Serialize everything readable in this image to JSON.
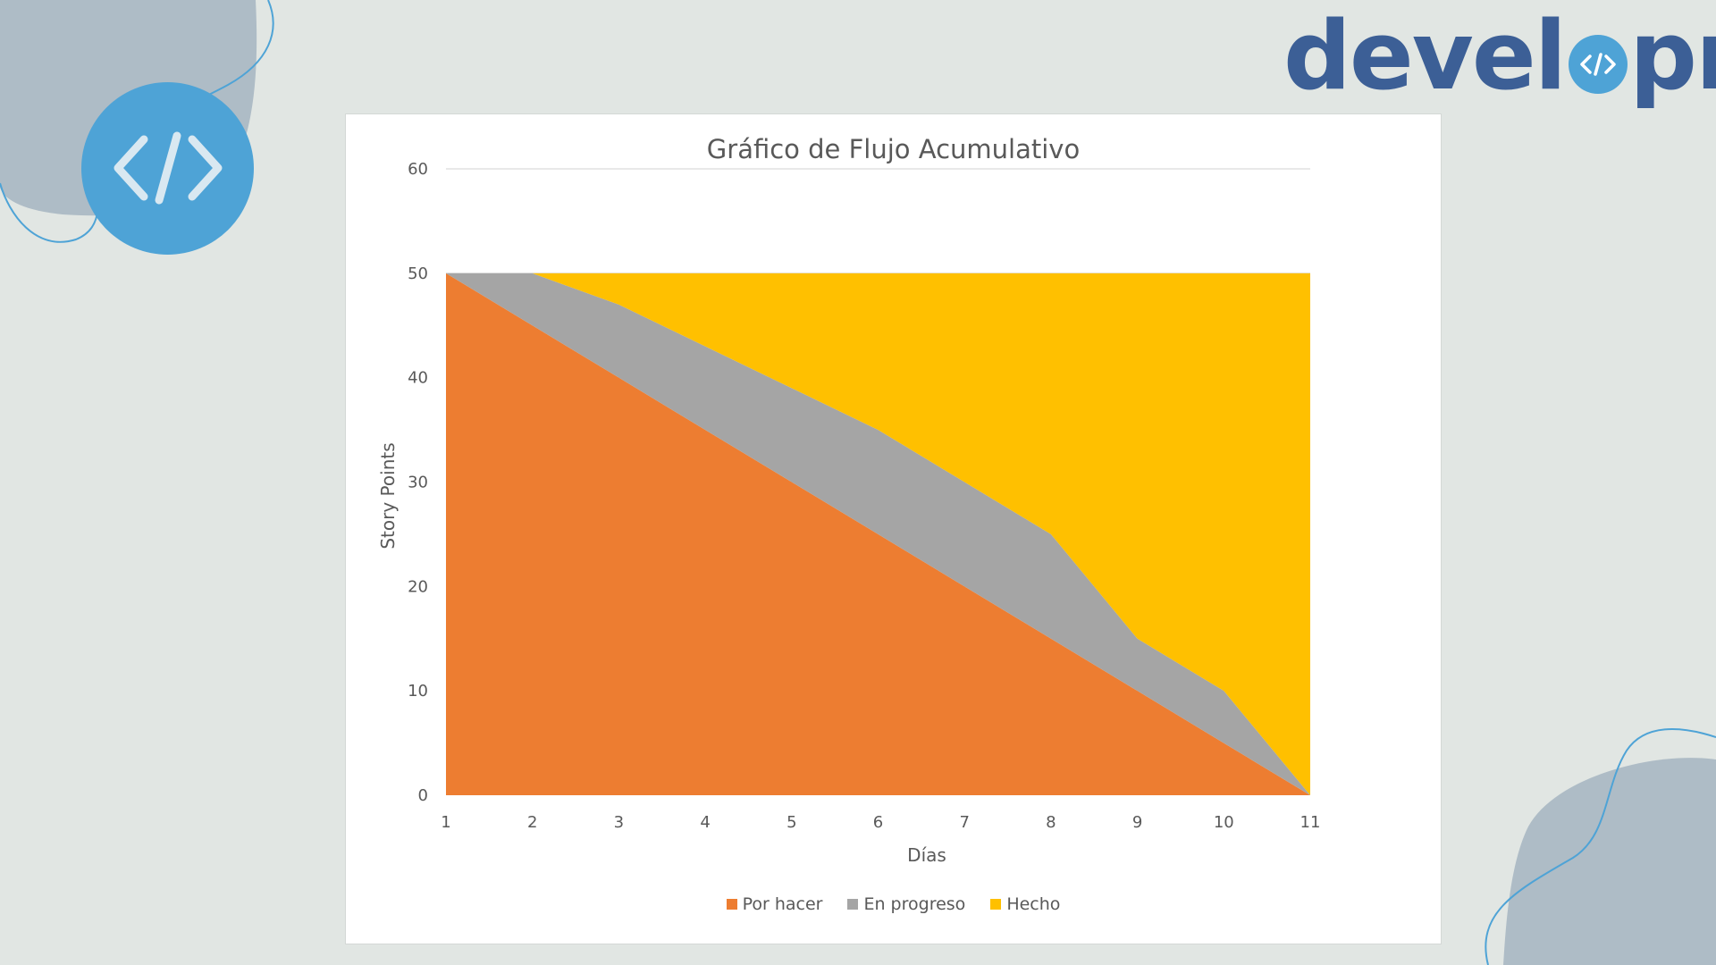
{
  "logo": {
    "text_before": "devel",
    "text_after": "pn"
  },
  "colors": {
    "background": "#e1e6e3",
    "logo_text": "#3c5f96",
    "accent_blue": "#4ea3d6",
    "blob": "#aebcc6"
  },
  "icons": [
    "code-brackets-icon",
    "logo-code-icon"
  ],
  "chart_data": {
    "type": "area",
    "title": "Gráfico de Flujo Acumulativo",
    "xlabel": "Días",
    "ylabel": "Story Points",
    "x": [
      1,
      2,
      3,
      4,
      5,
      6,
      7,
      8,
      9,
      10,
      11
    ],
    "ylim": [
      0,
      60
    ],
    "yticks": [
      0,
      10,
      20,
      30,
      40,
      50,
      60
    ],
    "grid": "horizontal",
    "stacked": true,
    "legend_position": "bottom",
    "series": [
      {
        "name": "Por hacer",
        "color": "#ed7d31",
        "values": [
          50,
          45,
          40,
          35,
          30,
          25,
          20,
          15,
          10,
          5,
          0
        ]
      },
      {
        "name": "En progreso",
        "color": "#a5a5a5",
        "values": [
          0,
          5,
          7,
          8,
          9,
          10,
          10,
          10,
          5,
          5,
          0
        ]
      },
      {
        "name": "Hecho",
        "color": "#ffc000",
        "values": [
          0,
          0,
          3,
          7,
          11,
          15,
          20,
          25,
          35,
          40,
          50
        ]
      }
    ]
  }
}
